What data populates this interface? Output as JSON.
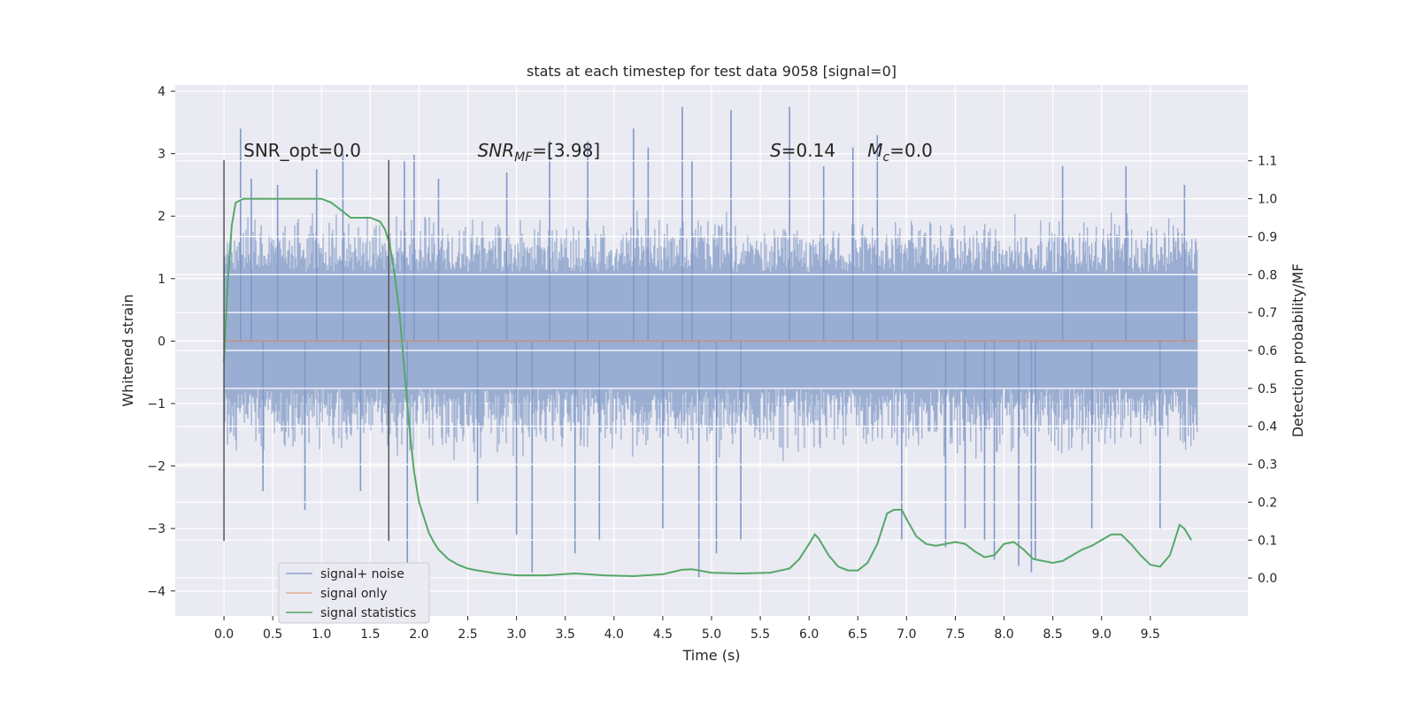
{
  "chart_data": {
    "type": "line",
    "title": "stats at each timestep for test data 9058 [signal=0]",
    "xlabel": "Time (s)",
    "ylabel": "Whitened strain",
    "y2label": "Detection probability/MF",
    "xlim": [
      -0.5,
      10.5
    ],
    "ylim": [
      -4.4,
      4.1
    ],
    "y2lim": [
      -0.1,
      1.3
    ],
    "x_ticks": [
      0.0,
      0.5,
      1.0,
      1.5,
      2.0,
      2.5,
      3.0,
      3.5,
      4.0,
      4.5,
      5.0,
      5.5,
      6.0,
      6.5,
      7.0,
      7.5,
      8.0,
      8.5,
      9.0,
      9.5
    ],
    "x_tick_labels": [
      "0.0",
      "0.5",
      "1.0",
      "1.5",
      "2.0",
      "2.5",
      "3.0",
      "3.5",
      "4.0",
      "4.5",
      "5.0",
      "5.5",
      "6.0",
      "6.5",
      "7.0",
      "7.5",
      "8.0",
      "8.5",
      "9.0",
      "9.5"
    ],
    "y_ticks": [
      4,
      3,
      2,
      1,
      0,
      -1,
      -2,
      -3,
      -4
    ],
    "y_tick_labels": [
      "4",
      "3",
      "2",
      "1",
      "0",
      "−1",
      "−2",
      "−3",
      "−4"
    ],
    "y2_ticks": [
      1.1,
      1.0,
      0.9,
      0.8,
      0.7,
      0.6,
      0.5,
      0.4,
      0.3,
      0.2,
      0.1,
      0.0
    ],
    "y2_tick_labels": [
      "1.1",
      "1.0",
      "0.9",
      "0.8",
      "0.7",
      "0.6",
      "0.5",
      "0.4",
      "0.3",
      "0.2",
      "0.1",
      "0.0"
    ],
    "grid": true,
    "legend_position": "bottom-left",
    "annotations": [
      {
        "text": "SNR_opt=0.0",
        "x": 0.2,
        "y": 2.95
      },
      {
        "text": "SNR_MF=[3.98]",
        "x": 2.6,
        "y": 2.95
      },
      {
        "text": "S=0.14",
        "x": 5.6,
        "y": 2.95
      },
      {
        "text": "M_c=0.0",
        "x": 6.6,
        "y": 2.95
      }
    ],
    "vertical_markers": [
      {
        "x": 0.0,
        "y_range": [
          -3.2,
          2.9
        ]
      },
      {
        "x": 1.69,
        "y_range": [
          -3.2,
          2.9
        ]
      }
    ],
    "series": [
      {
        "name": "signal+ noise",
        "color": "#4c72b0",
        "axis": "left",
        "render": "noise_band",
        "x_range": [
          0.0,
          9.98
        ],
        "core_range": [
          -0.75,
          1.1
        ],
        "typical_envelope": [
          -2.0,
          2.1
        ],
        "spikes": [
          {
            "x": 0.17,
            "y": 3.4
          },
          {
            "x": 0.28,
            "y": 2.6
          },
          {
            "x": 0.4,
            "y": -2.4
          },
          {
            "x": 0.55,
            "y": 2.5
          },
          {
            "x": 0.83,
            "y": -2.7
          },
          {
            "x": 0.95,
            "y": 2.75
          },
          {
            "x": 1.22,
            "y": 3.0
          },
          {
            "x": 1.4,
            "y": -2.4
          },
          {
            "x": 1.85,
            "y": 2.9
          },
          {
            "x": 1.88,
            "y": -4.0
          },
          {
            "x": 1.95,
            "y": 2.98
          },
          {
            "x": 2.2,
            "y": 2.6
          },
          {
            "x": 2.6,
            "y": -2.6
          },
          {
            "x": 2.9,
            "y": 2.7
          },
          {
            "x": 3.0,
            "y": -3.1
          },
          {
            "x": 3.16,
            "y": -3.7
          },
          {
            "x": 3.34,
            "y": 3.2
          },
          {
            "x": 3.6,
            "y": -3.4
          },
          {
            "x": 3.73,
            "y": 3.2
          },
          {
            "x": 3.85,
            "y": -3.2
          },
          {
            "x": 4.2,
            "y": 3.4
          },
          {
            "x": 4.35,
            "y": 3.1
          },
          {
            "x": 4.5,
            "y": -3.0
          },
          {
            "x": 4.7,
            "y": 3.75
          },
          {
            "x": 4.8,
            "y": 2.9
          },
          {
            "x": 4.87,
            "y": -3.8
          },
          {
            "x": 5.05,
            "y": -3.4
          },
          {
            "x": 5.2,
            "y": 3.7
          },
          {
            "x": 5.3,
            "y": -3.2
          },
          {
            "x": 5.8,
            "y": 3.75
          },
          {
            "x": 6.15,
            "y": 2.8
          },
          {
            "x": 6.45,
            "y": 3.1
          },
          {
            "x": 6.7,
            "y": 3.3
          },
          {
            "x": 6.95,
            "y": -3.2
          },
          {
            "x": 7.4,
            "y": -3.3
          },
          {
            "x": 7.6,
            "y": -3.0
          },
          {
            "x": 7.8,
            "y": -3.2
          },
          {
            "x": 7.9,
            "y": -3.5
          },
          {
            "x": 8.15,
            "y": -3.6
          },
          {
            "x": 8.28,
            "y": -3.7
          },
          {
            "x": 8.32,
            "y": -3.5
          },
          {
            "x": 8.6,
            "y": 2.8
          },
          {
            "x": 8.9,
            "y": -3.0
          },
          {
            "x": 9.25,
            "y": 2.8
          },
          {
            "x": 9.6,
            "y": -3.0
          },
          {
            "x": 9.85,
            "y": 2.5
          }
        ]
      },
      {
        "name": "signal only",
        "color": "#dd8452",
        "axis": "left",
        "x": [
          0.0,
          9.98
        ],
        "y": [
          0.0,
          0.0
        ]
      },
      {
        "name": "signal statistics",
        "color": "#55a868",
        "axis": "right",
        "x": [
          0.0,
          0.04,
          0.08,
          0.12,
          0.2,
          0.3,
          0.4,
          0.5,
          0.6,
          0.7,
          0.8,
          0.9,
          1.0,
          1.1,
          1.2,
          1.3,
          1.4,
          1.5,
          1.6,
          1.65,
          1.7,
          1.75,
          1.8,
          1.85,
          1.9,
          1.95,
          2.0,
          2.05,
          2.1,
          2.15,
          2.2,
          2.3,
          2.4,
          2.5,
          2.6,
          2.8,
          3.0,
          3.3,
          3.6,
          3.9,
          4.2,
          4.5,
          4.7,
          4.8,
          5.0,
          5.3,
          5.6,
          5.8,
          5.9,
          6.0,
          6.06,
          6.1,
          6.2,
          6.3,
          6.4,
          6.5,
          6.6,
          6.7,
          6.8,
          6.87,
          6.95,
          7.0,
          7.1,
          7.2,
          7.3,
          7.4,
          7.5,
          7.6,
          7.7,
          7.8,
          7.9,
          8.0,
          8.1,
          8.2,
          8.3,
          8.4,
          8.5,
          8.6,
          8.7,
          8.8,
          8.9,
          9.0,
          9.1,
          9.2,
          9.3,
          9.4,
          9.5,
          9.6,
          9.7,
          9.8,
          9.85,
          9.92
        ],
        "y": [
          0.57,
          0.79,
          0.93,
          0.99,
          1.0,
          1.0,
          1.0,
          1.0,
          1.0,
          1.0,
          1.0,
          1.0,
          1.0,
          0.99,
          0.97,
          0.95,
          0.95,
          0.95,
          0.94,
          0.92,
          0.88,
          0.8,
          0.7,
          0.55,
          0.4,
          0.28,
          0.2,
          0.16,
          0.12,
          0.095,
          0.075,
          0.05,
          0.035,
          0.025,
          0.02,
          0.012,
          0.007,
          0.007,
          0.012,
          0.007,
          0.005,
          0.01,
          0.022,
          0.023,
          0.014,
          0.012,
          0.014,
          0.025,
          0.05,
          0.09,
          0.115,
          0.104,
          0.06,
          0.03,
          0.02,
          0.02,
          0.04,
          0.09,
          0.17,
          0.18,
          0.18,
          0.155,
          0.11,
          0.09,
          0.085,
          0.09,
          0.095,
          0.09,
          0.07,
          0.055,
          0.06,
          0.09,
          0.095,
          0.075,
          0.05,
          0.045,
          0.04,
          0.045,
          0.06,
          0.075,
          0.085,
          0.1,
          0.115,
          0.115,
          0.09,
          0.06,
          0.035,
          0.03,
          0.06,
          0.14,
          0.13,
          0.1
        ]
      }
    ]
  }
}
